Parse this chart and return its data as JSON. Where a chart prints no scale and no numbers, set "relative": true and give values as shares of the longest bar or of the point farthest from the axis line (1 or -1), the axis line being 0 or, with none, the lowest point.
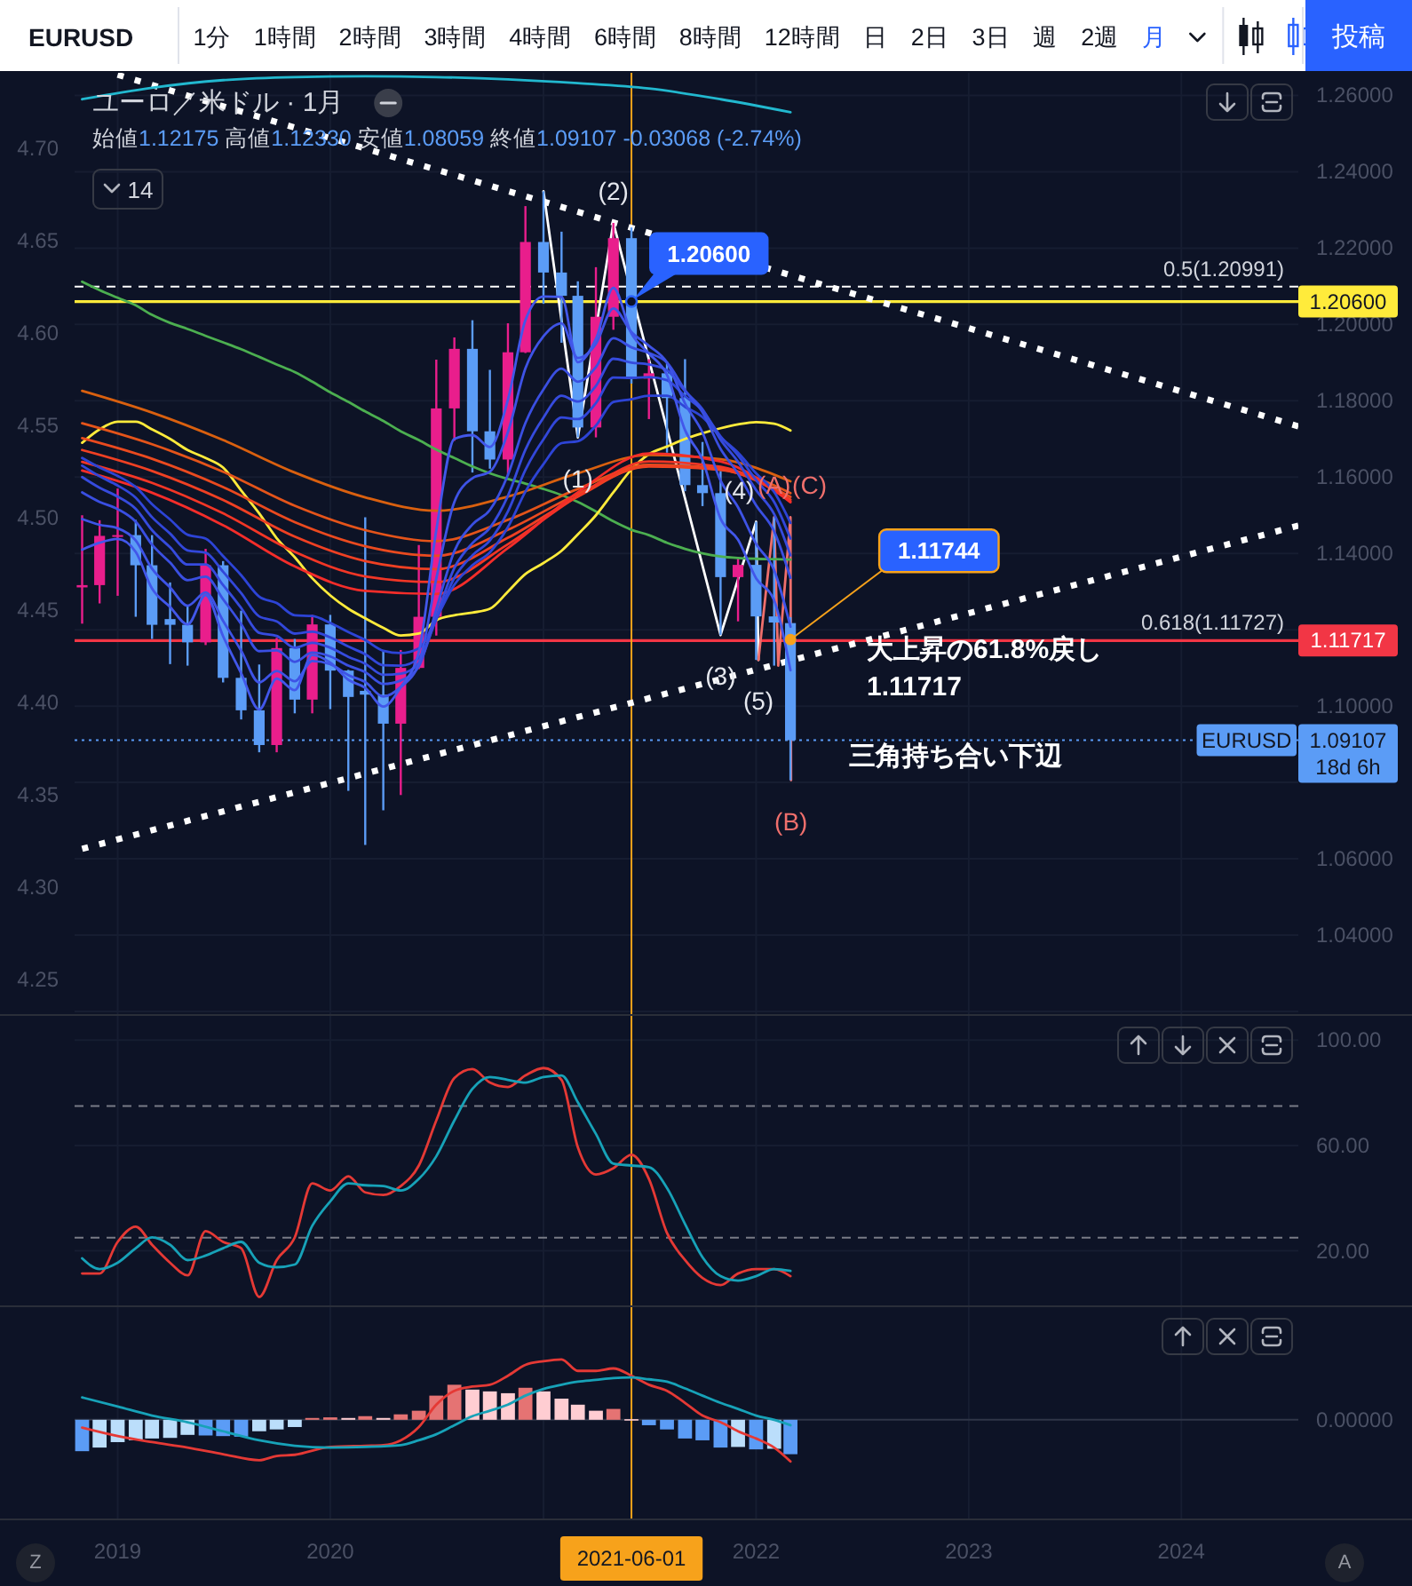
{
  "chart_data": [
    {
      "type": "candlestick",
      "title": "ユーロ／米ドル · 1月",
      "subtitle": "始値1.12175 高値1.12330 安値1.08059 終値1.09107 -0.03068 (-2.74%)",
      "x": [
        "2018-11",
        "2018-12",
        "2019-01",
        "2019-02",
        "2019-03",
        "2019-04",
        "2019-05",
        "2019-06",
        "2019-07",
        "2019-08",
        "2019-09",
        "2019-10",
        "2019-11",
        "2019-12",
        "2020-01",
        "2020-02",
        "2020-03",
        "2020-04",
        "2020-05",
        "2020-06",
        "2020-07",
        "2020-08",
        "2020-09",
        "2020-10",
        "2020-11",
        "2020-12",
        "2021-01",
        "2021-02",
        "2021-03",
        "2021-04",
        "2021-05",
        "2021-06",
        "2021-07",
        "2021-08",
        "2021-09",
        "2021-10",
        "2021-11",
        "2021-12",
        "2022-01",
        "2022-02",
        "2022-03"
      ],
      "xlim": [
        "2018-06-13",
        "2025-01-31"
      ],
      "xticks": [
        "2019",
        "2020",
        {
          "value": "2021",
          "label": null
        },
        "2022",
        "2023",
        "2024"
      ],
      "ylim": [
        1.0193,
        1.285
      ],
      "yticks": [
        {
          "value": 1.02,
          "label": null
        },
        {
          "value": 1.04,
          "label": "1.04000"
        },
        {
          "value": 1.06,
          "label": "1.06000"
        },
        {
          "value": 1.08,
          "label": null
        },
        {
          "value": 1.1,
          "label": "1.10000"
        },
        {
          "value": 1.12,
          "label": null
        },
        {
          "value": 1.14,
          "label": "1.14000"
        },
        {
          "value": 1.16,
          "label": "1.16000"
        },
        {
          "value": 1.18,
          "label": "1.18000"
        },
        {
          "value": 1.2,
          "label": "1.20000"
        },
        {
          "value": 1.22,
          "label": "1.22000"
        },
        {
          "value": 1.24,
          "label": "1.24000"
        },
        {
          "value": 1.26,
          "label": "1.26000"
        }
      ],
      "y2lim": [
        4.2315,
        4.78
      ],
      "y2ticks": [
        {
          "value": 4.25,
          "label": "4.25"
        },
        {
          "value": 4.3,
          "label": "4.30"
        },
        {
          "value": 4.35,
          "label": "4.35"
        },
        {
          "value": 4.4,
          "label": "4.40"
        },
        {
          "value": 4.45,
          "label": "4.45"
        },
        {
          "value": 4.5,
          "label": "4.50"
        },
        {
          "value": 4.55,
          "label": "4.55"
        },
        {
          "value": 4.6,
          "label": "4.60"
        },
        {
          "value": 4.65,
          "label": "4.65"
        },
        {
          "value": 4.7,
          "label": "4.70"
        }
      ],
      "tick_labels": "y",
      "grid": true,
      "series": [
        {
          "type": "candlestick",
          "name": "EURUSD",
          "ohlc": [
            [
              1.1311,
              1.15,
              1.1216,
              1.1317
            ],
            [
              1.1317,
              1.1487,
              1.1269,
              1.1446
            ],
            [
              1.1446,
              1.157,
              1.1289,
              1.1448
            ],
            [
              1.1448,
              1.1488,
              1.1234,
              1.1369
            ],
            [
              1.1369,
              1.1448,
              1.1176,
              1.1213
            ],
            [
              1.1228,
              1.1324,
              1.111,
              1.1213
            ],
            [
              1.1213,
              1.1265,
              1.1106,
              1.1167
            ],
            [
              1.1167,
              1.1412,
              1.116,
              1.1369
            ],
            [
              1.1369,
              1.138,
              1.1062,
              1.1074
            ],
            [
              1.1074,
              1.125,
              1.0965,
              1.0989
            ],
            [
              1.0989,
              1.1109,
              1.0879,
              1.0898
            ],
            [
              1.0898,
              1.1179,
              1.0879,
              1.1152
            ],
            [
              1.1152,
              1.1176,
              1.0981,
              1.1017
            ],
            [
              1.1017,
              1.1239,
              1.0981,
              1.1214
            ],
            [
              1.1214,
              1.1239,
              1.0992,
              1.1093
            ],
            [
              1.1093,
              1.1095,
              1.0778,
              1.1024
            ],
            [
              1.104,
              1.1495,
              1.0636,
              1.103
            ],
            [
              1.103,
              1.1147,
              1.0727,
              1.0954
            ],
            [
              1.0954,
              1.1147,
              1.0767,
              1.11
            ],
            [
              1.11,
              1.1422,
              1.1097,
              1.1234
            ],
            [
              1.1234,
              1.1908,
              1.1185,
              1.178
            ],
            [
              1.178,
              1.1966,
              1.1695,
              1.1936
            ],
            [
              1.1936,
              1.2011,
              1.1612,
              1.172
            ],
            [
              1.172,
              1.1881,
              1.1622,
              1.1646
            ],
            [
              1.1646,
              1.2003,
              1.1603,
              1.1927
            ],
            [
              1.1927,
              1.231,
              1.1925,
              1.2216
            ],
            [
              1.2216,
              1.2349,
              1.2054,
              1.2136
            ],
            [
              1.2136,
              1.2243,
              1.1952,
              1.2075
            ],
            [
              1.2075,
              1.2113,
              1.1704,
              1.173
            ],
            [
              1.173,
              1.215,
              1.1704,
              1.202
            ],
            [
              1.202,
              1.2266,
              1.1986,
              1.2226
            ],
            [
              1.2226,
              1.2254,
              1.1845,
              1.1858
            ],
            [
              1.1858,
              1.1909,
              1.1752,
              1.1872
            ],
            [
              1.1872,
              1.1902,
              1.1664,
              1.1807
            ],
            [
              1.1807,
              1.1909,
              1.1563,
              1.1579
            ],
            [
              1.1579,
              1.1692,
              1.1524,
              1.1558
            ],
            [
              1.1558,
              1.1616,
              1.1186,
              1.1338
            ],
            [
              1.1338,
              1.1386,
              1.1222,
              1.137
            ],
            [
              1.137,
              1.1483,
              1.1121,
              1.1235
            ],
            [
              1.1235,
              1.1495,
              1.1106,
              1.1219
            ],
            [
              1.12175,
              1.1233,
              1.08059,
              1.09107
            ]
          ],
          "colors": [
            "#e91e8c",
            "#e91e8c",
            "#e91e8c",
            "#5b9cf6",
            "#5b9cf6",
            "#5b9cf6",
            "#5b9cf6",
            "#e91e8c",
            "#5b9cf6",
            "#5b9cf6",
            "#5b9cf6",
            "#e91e8c",
            "#5b9cf6",
            "#e91e8c",
            "#5b9cf6",
            "#5b9cf6",
            "#5b9cf6",
            "#5b9cf6",
            "#e91e8c",
            "#e91e8c",
            "#e91e8c",
            "#e91e8c",
            "#5b9cf6",
            "#5b9cf6",
            "#e91e8c",
            "#e91e8c",
            "#5b9cf6",
            "#5b9cf6",
            "#5b9cf6",
            "#e91e8c",
            "#e91e8c",
            "#5b9cf6",
            "#e91e8c",
            "#5b9cf6",
            "#5b9cf6",
            "#5b9cf6",
            "#5b9cf6",
            "#e91e8c",
            "#5b9cf6",
            "#5b9cf6",
            "#5b9cf6"
          ]
        },
        {
          "type": "line",
          "color": "#22b8cf",
          "x": [
            "2018-11",
            "2019-03",
            "2019-07",
            "2019-11",
            "2020-03",
            "2020-07",
            "2020-11",
            "2021-03",
            "2021-07",
            "2021-11",
            "2022-03"
          ],
          "values": [
            1.259,
            1.262,
            1.264,
            1.2648,
            1.265,
            1.2648,
            1.2642,
            1.2632,
            1.2618,
            1.259,
            1.2556
          ]
        },
        {
          "type": "line",
          "color": "#4caf50",
          "values": [
            1.2112,
            1.209,
            1.207,
            1.205,
            1.2025,
            1.2004,
            1.1988,
            1.197,
            1.1953,
            1.1935,
            1.1915,
            1.1895,
            1.1875,
            1.185,
            1.1822,
            1.1797,
            1.1772,
            1.1747,
            1.172,
            1.1697,
            1.1672,
            1.165,
            1.1628,
            1.161,
            1.1595,
            1.1583,
            1.1569,
            1.1553,
            1.1535,
            1.151,
            1.1484,
            1.1462,
            1.1448,
            1.1428,
            1.1412,
            1.14,
            1.1392,
            1.1388,
            1.1386,
            1.1385,
            1.1384
          ]
        },
        {
          "type": "line",
          "color": "#ffeb3b",
          "values": [
            1.169,
            1.1725,
            1.1745,
            1.1745,
            1.1725,
            1.17,
            1.1671,
            1.165,
            1.1625,
            1.1565,
            1.1505,
            1.144,
            1.139,
            1.1335,
            1.129,
            1.1255,
            1.123,
            1.1205,
            1.1185,
            1.119,
            1.1225,
            1.1238,
            1.1245,
            1.1255,
            1.13,
            1.1346,
            1.1375,
            1.1407,
            1.145,
            1.15,
            1.156,
            1.162,
            1.166,
            1.168,
            1.17,
            1.1715,
            1.1728,
            1.1738,
            1.1744,
            1.174,
            1.1722
          ]
        },
        {
          "type": "line",
          "color": "#d9600f",
          "x": [
            "2018-11",
            "2019-03",
            "2019-07",
            "2019-11",
            "2020-03",
            "2020-07",
            "2020-11",
            "2021-03",
            "2021-07",
            "2021-11",
            "2022-03"
          ],
          "values": [
            1.1826,
            1.1769,
            1.1697,
            1.1612,
            1.1547,
            1.1512,
            1.1549,
            1.161,
            1.1658,
            1.1647,
            1.1589
          ]
        },
        {
          "type": "line",
          "color": "#e4541a",
          "x": [
            "2018-11",
            "2019-03",
            "2019-07",
            "2019-11",
            "2020-03",
            "2020-07",
            "2020-11",
            "2021-03",
            "2021-07",
            "2021-11",
            "2022-03"
          ],
          "values": [
            1.1741,
            1.1686,
            1.1614,
            1.1525,
            1.1461,
            1.1432,
            1.1488,
            1.1569,
            1.1632,
            1.1623,
            1.1558
          ]
        },
        {
          "type": "line",
          "color": "#ea4a1f",
          "x": [
            "2018-11",
            "2019-03",
            "2019-07",
            "2019-11",
            "2020-03",
            "2020-07",
            "2020-11",
            "2021-03",
            "2021-07",
            "2021-11",
            "2022-03"
          ],
          "values": [
            1.1702,
            1.1648,
            1.1574,
            1.1482,
            1.1419,
            1.1394,
            1.1462,
            1.1556,
            1.1628,
            1.1619,
            1.1548
          ]
        },
        {
          "type": "line",
          "color": "#ef4023",
          "x": [
            "2018-11",
            "2019-03",
            "2019-07",
            "2019-11",
            "2020-03",
            "2020-07",
            "2020-11",
            "2021-03",
            "2021-07",
            "2021-11",
            "2022-03"
          ],
          "values": [
            1.1671,
            1.1616,
            1.154,
            1.1444,
            1.138,
            1.1359,
            1.1441,
            1.1549,
            1.163,
            1.162,
            1.1541
          ]
        },
        {
          "type": "line",
          "color": "#f23626",
          "x": [
            "2018-11",
            "2019-03",
            "2019-07",
            "2019-11",
            "2020-03",
            "2020-07",
            "2020-11",
            "2021-03",
            "2021-07",
            "2021-11",
            "2022-03"
          ],
          "values": [
            1.164,
            1.1585,
            1.1505,
            1.1404,
            1.134,
            1.1325,
            1.1424,
            1.155,
            1.1641,
            1.1627,
            1.1537
          ]
        },
        {
          "type": "line",
          "color": "#f42d2a",
          "x": [
            "2018-11",
            "2019-03",
            "2019-07",
            "2019-11",
            "2020-03",
            "2020-07",
            "2020-11",
            "2021-03",
            "2021-07",
            "2021-11",
            "2022-03"
          ],
          "values": [
            1.1617,
            1.1559,
            1.1474,
            1.1366,
            1.1302,
            1.1294,
            1.1414,
            1.156,
            1.1662,
            1.1641,
            1.1534
          ]
        },
        {
          "type": "line",
          "color": "#2d44d6",
          "values": [
            1.165,
            1.1625,
            1.1603,
            1.1574,
            1.1529,
            1.1489,
            1.1449,
            1.1439,
            1.1393,
            1.1343,
            1.1287,
            1.127,
            1.1238,
            1.1236,
            1.1218,
            1.1194,
            1.1173,
            1.1145,
            1.1139,
            1.1151,
            1.123,
            1.1318,
            1.1369,
            1.1403,
            1.1469,
            1.1562,
            1.1634,
            1.1689,
            1.1694,
            1.1735,
            1.1797,
            1.1804,
            1.1813,
            1.1813,
            1.1784,
            1.1757,
            1.1705,
            1.1664,
            1.161,
            1.1561,
            1.148
          ]
        },
        {
          "type": "line",
          "color": "#3247da",
          "values": [
            1.163,
            1.1602,
            1.1578,
            1.1546,
            1.1495,
            1.1452,
            1.1408,
            1.1402,
            1.1352,
            1.1296,
            1.1235,
            1.1222,
            1.119,
            1.1195,
            1.118,
            1.1156,
            1.1136,
            1.1107,
            1.1106,
            1.1126,
            1.1227,
            1.1336,
            1.1395,
            1.1434,
            1.151,
            1.1619,
            1.1699,
            1.1756,
            1.1752,
            1.1794,
            1.1861,
            1.186,
            1.1862,
            1.1854,
            1.1812,
            1.1774,
            1.1707,
            1.1657,
            1.1592,
            1.1535,
            1.1439
          ]
        },
        {
          "type": "line",
          "color": "#364bde",
          "values": [
            1.16,
            1.1572,
            1.1549,
            1.1517,
            1.1461,
            1.1416,
            1.1371,
            1.1371,
            1.1317,
            1.1257,
            1.1192,
            1.1184,
            1.1153,
            1.1166,
            1.1153,
            1.1129,
            1.1111,
            1.1082,
            1.1085,
            1.1112,
            1.1234,
            1.1362,
            1.1427,
            1.1467,
            1.1551,
            1.1672,
            1.1756,
            1.1813,
            1.1798,
            1.1839,
            1.191,
            1.19,
            1.1895,
            1.188,
            1.1825,
            1.1778,
            1.1698,
            1.164,
            1.1566,
            1.1503,
            1.1395
          ]
        },
        {
          "type": "line",
          "color": "#3a4fe2",
          "values": [
            1.156,
            1.1535,
            1.1516,
            1.1483,
            1.1423,
            1.1376,
            1.133,
            1.1339,
            1.128,
            1.1215,
            1.1144,
            1.1146,
            1.1116,
            1.114,
            1.113,
            1.1106,
            1.1089,
            1.1058,
            1.1067,
            1.1104,
            1.1254,
            1.1406,
            1.1476,
            1.1514,
            1.1606,
            1.1742,
            1.183,
            1.1884,
            1.185,
            1.1888,
            1.1964,
            1.194,
            1.1925,
            1.19,
            1.1828,
            1.177,
            1.1674,
            1.1609,
            1.1526,
            1.1458,
            1.1336
          ]
        },
        {
          "type": "line",
          "color": "#3e53e6",
          "values": [
            1.149,
            1.1475,
            1.1466,
            1.1434,
            1.136,
            1.1311,
            1.1263,
            1.1298,
            1.1223,
            1.1145,
            1.1062,
            1.1092,
            1.1065,
            1.1118,
            1.111,
            1.1081,
            1.1063,
            1.1025,
            1.105,
            1.1111,
            1.1334,
            1.1535,
            1.1597,
            1.1614,
            1.1718,
            1.1885,
            1.1969,
            1.2003,
            1.1912,
            1.1949,
            1.2042,
            1.198,
            1.1944,
            1.19,
            1.1793,
            1.1717,
            1.1591,
            1.1521,
            1.1425,
            1.1356,
            1.1208
          ]
        },
        {
          "type": "line",
          "color": "#4257ea",
          "values": [
            1.141,
            1.1428,
            1.1438,
            1.1404,
            1.1308,
            1.126,
            1.1214,
            1.1291,
            1.1183,
            1.1086,
            1.0991,
            1.1072,
            1.1042,
            1.1134,
            1.1114,
            1.1069,
            1.1048,
            1.0999,
            1.105,
            1.1142,
            1.1461,
            1.17,
            1.171,
            1.1679,
            1.1803,
            1.2011,
            1.2073,
            1.2072,
            1.1901,
            1.1962,
            1.2096,
            1.1976,
            1.1924,
            1.1868,
            1.1723,
            1.1645,
            1.1491,
            1.1436,
            1.1335,
            1.1277,
            1.1094
          ]
        },
        {
          "type": "line",
          "color": "#ffffff",
          "line_style": "dotted",
          "x": [
            "2019-01",
            "2024-07-20"
          ],
          "values": [
            1.2654,
            1.1733
          ]
        },
        {
          "type": "line",
          "color": "#ffffff",
          "line_style": "dotted",
          "x": [
            "2018-11",
            "2024-07-20"
          ],
          "values": [
            1.0626,
            1.1473
          ]
        },
        {
          "type": "line",
          "color": "#ffffff",
          "x": [
            "2021-01",
            "2021-03",
            "2021-05",
            "2021-11",
            "2022-01",
            "2022-01-05"
          ],
          "values": [
            1.2349,
            1.1704,
            1.2266,
            1.1186,
            1.1483,
            1.1121
          ]
        },
        {
          "type": "line",
          "color": "#ef6f6c",
          "x": [
            "2022-01-05",
            "2022-02",
            "2022-02-08",
            "2022-03",
            "2022-03-02"
          ],
          "values": [
            1.1121,
            1.1495,
            1.1106,
            1.1495,
            1.0806
          ]
        }
      ],
      "ref_lines": [
        {
          "axis": "y",
          "value": 1.20991,
          "color": "#ffffff",
          "line_style": "dashed"
        },
        {
          "axis": "y",
          "value": 1.206,
          "label": "1.20600",
          "color": "#ffeb3b"
        },
        {
          "axis": "y",
          "value": 1.11717,
          "label": "1.11717",
          "color": "#f23645"
        },
        {
          "axis": "y",
          "value": 1.09107,
          "label": "1.09107\n18d 6h",
          "color": "#5b9cf6",
          "line_style": "dotted"
        },
        {
          "axis": "x",
          "value": "2021-06-01",
          "color": "#f7a21b"
        }
      ],
      "annotations": [
        "EURUSD",
        "1分",
        "1時間",
        "2時間",
        "3時間",
        "4時間",
        "6時間",
        "8時間",
        "12時間",
        "日",
        "2日",
        "3日",
        "週",
        "2週",
        "月",
        "投稿",
        "14",
        "三角持ち合い下辺",
        {
          "text": "(1)",
          "x": "2021-03",
          "y": 1.1704
        },
        {
          "text": "(2)",
          "x": "2021-05",
          "y": 1.2266
        },
        {
          "text": "(3)",
          "x": "2021-11",
          "y": 1.1186
        },
        {
          "text": "(4)",
          "x": "2022-01",
          "y": 1.1483
        },
        {
          "text": "(5)",
          "x": "2022-01-05",
          "y": 1.1121
        },
        {
          "text": "(A)",
          "x": "2022-02",
          "y": 1.1495
        },
        {
          "text": "(B)",
          "x": "2022-03-02",
          "y": 1.0806
        },
        {
          "text": "(C)",
          "x": "2022-03",
          "y": 1.1495
        },
        {
          "text": "1.20600",
          "x": "2021-06",
          "y": 1.206
        },
        {
          "text": "1.11744",
          "x": "2022-03",
          "y": 1.11744
        },
        {
          "text": "大上昇の61.8%戻し\n1.11717",
          "x": "2022-07-10",
          "y": 1.1147
        },
        {
          "text": "0.5(1.20991)",
          "y": 1.20991
        },
        {
          "text": "0.618(1.11727)",
          "y": 1.11727
        }
      ]
    },
    {
      "type": "line",
      "x": [
        "2018-11",
        "2018-12",
        "2019-01",
        "2019-02",
        "2019-03",
        "2019-04",
        "2019-05",
        "2019-06",
        "2019-07",
        "2019-08",
        "2019-09",
        "2019-10",
        "2019-11",
        "2019-12",
        "2020-01",
        "2020-02",
        "2020-03",
        "2020-04",
        "2020-05",
        "2020-06",
        "2020-07",
        "2020-08",
        "2020-09",
        "2020-10",
        "2020-11",
        "2020-12",
        "2021-01",
        "2021-02",
        "2021-03",
        "2021-04",
        "2021-05",
        "2021-06",
        "2021-07",
        "2021-08",
        "2021-09",
        "2021-10",
        "2021-11",
        "2021-12",
        "2022-01",
        "2022-02",
        "2022-03"
      ],
      "xlim": [
        "2018-06-13",
        "2025-01-31"
      ],
      "xticks": [
        "2019",
        "2020",
        {
          "value": "2021",
          "label": null
        },
        "2022",
        "2023",
        "2024"
      ],
      "ylim": [
        -0.7,
        109.2
      ],
      "yticks": [
        {
          "value": 20,
          "label": "20.00"
        },
        {
          "value": 60,
          "label": "60.00"
        },
        {
          "value": 100,
          "label": "100.00"
        }
      ],
      "tick_labels": "y",
      "grid": true,
      "series": [
        {
          "color": "#e53935",
          "values": [
            11.4,
            11.4,
            23.4,
            29.2,
            22.3,
            15.5,
            10.7,
            27.5,
            23.4,
            21.0,
            2.5,
            16.5,
            25.1,
            45.6,
            42.9,
            48.3,
            42.2,
            41.2,
            44.6,
            52.4,
            69.5,
            85.6,
            89.0,
            83.9,
            82.2,
            86.6,
            89.4,
            84.9,
            59.3,
            49.0,
            51.4,
            56.5,
            47.3,
            26.8,
            16.5,
            9.7,
            7.0,
            11.4,
            13.1,
            13.1,
            10.4
          ]
        },
        {
          "color": "#17a2b8",
          "values": [
            17.2,
            13.1,
            15.5,
            21.0,
            25.1,
            22.3,
            16.5,
            18.2,
            21.0,
            23.4,
            15.5,
            13.8,
            14.8,
            29.5,
            38.8,
            45.6,
            44.9,
            44.6,
            42.9,
            47.3,
            55.9,
            69.5,
            81.5,
            86.0,
            84.9,
            83.9,
            86.0,
            86.6,
            76.4,
            64.4,
            53.1,
            52.4,
            51.8,
            43.9,
            30.2,
            17.6,
            10.4,
            8.7,
            10.4,
            13.1,
            12.4
          ]
        }
      ],
      "ref_lines": [
        {
          "axis": "y",
          "value": 75,
          "color": "#787b86",
          "line_style": "dashed"
        },
        {
          "axis": "y",
          "value": 25,
          "color": "#787b86",
          "line_style": "dashed"
        },
        {
          "axis": "x",
          "value": "2021-06-01",
          "color": "#f7a21b"
        }
      ]
    },
    {
      "type": "bar",
      "relative": true,
      "x": [
        "2018-11",
        "2018-12",
        "2019-01",
        "2019-02",
        "2019-03",
        "2019-04",
        "2019-05",
        "2019-06",
        "2019-07",
        "2019-08",
        "2019-09",
        "2019-10",
        "2019-11",
        "2019-12",
        "2020-01",
        "2020-02",
        "2020-03",
        "2020-04",
        "2020-05",
        "2020-06",
        "2020-07",
        "2020-08",
        "2020-09",
        "2020-10",
        "2020-11",
        "2020-12",
        "2021-01",
        "2021-02",
        "2021-03",
        "2021-04",
        "2021-05",
        "2021-06",
        "2021-07",
        "2021-08",
        "2021-09",
        "2021-10",
        "2021-11",
        "2021-12",
        "2022-01",
        "2022-02",
        "2022-03"
      ],
      "xlim": [
        "2018-06-13",
        "2025-01-31"
      ],
      "xticks": [
        "2019",
        "2020",
        {
          "value": "2021",
          "label": null
        },
        "2022",
        "2023",
        "2024"
      ],
      "tick_labels": "x",
      "grid": "x",
      "series": [
        {
          "type": "bar",
          "values": [
            -0.52,
            -0.46,
            -0.37,
            -0.34,
            -0.31,
            -0.3,
            -0.25,
            -0.26,
            -0.27,
            -0.28,
            -0.19,
            -0.16,
            -0.12,
            0.03,
            0.04,
            0.03,
            0.06,
            0.03,
            0.09,
            0.15,
            0.4,
            0.58,
            0.5,
            0.47,
            0.44,
            0.53,
            0.47,
            0.35,
            0.25,
            0.15,
            0.18,
            0.01,
            -0.09,
            -0.16,
            -0.31,
            -0.34,
            -0.46,
            -0.45,
            -0.49,
            -0.48,
            -0.57
          ],
          "colors": [
            "#5b9cf6",
            "#bbdefb",
            "#bbdefb",
            "#bbdefb",
            "#bbdefb",
            "#bbdefb",
            "#bbdefb",
            "#5b9cf6",
            "#5b9cf6",
            "#5b9cf6",
            "#bbdefb",
            "#bbdefb",
            "#bbdefb",
            "#e57373",
            "#e57373",
            "#ffcdd2",
            "#e57373",
            "#ffcdd2",
            "#e57373",
            "#e57373",
            "#e57373",
            "#e57373",
            "#ffcdd2",
            "#ffcdd2",
            "#ffcdd2",
            "#e57373",
            "#ffcdd2",
            "#ffcdd2",
            "#ffcdd2",
            "#ffcdd2",
            "#e57373",
            "#ffcdd2",
            "#5b9cf6",
            "#5b9cf6",
            "#5b9cf6",
            "#5b9cf6",
            "#5b9cf6",
            "#bbdefb",
            "#5b9cf6",
            "#bbdefb",
            "#5b9cf6"
          ]
        },
        {
          "type": "line",
          "color": "#e53935",
          "x": [
            "2018-11",
            "2019-01",
            "2019-03",
            "2019-05",
            "2019-07",
            "2019-09",
            "2019-10",
            "2019-11",
            "2020-01",
            "2020-03",
            "2020-04",
            "2020-05",
            "2020-06",
            "2020-07",
            "2020-08",
            "2020-09",
            "2020-10",
            "2020-11",
            "2020-12",
            "2021-01",
            "2021-02",
            "2021-03",
            "2021-04",
            "2021-05",
            "2021-06",
            "2021-07",
            "2021-08",
            "2021-09",
            "2021-10",
            "2021-11",
            "2021-12",
            "2022-01",
            "2022-02",
            "2022-03"
          ],
          "values": [
            -0.13,
            -0.27,
            -0.37,
            -0.46,
            -0.57,
            -0.67,
            -0.6,
            -0.58,
            -0.45,
            -0.43,
            -0.42,
            -0.34,
            -0.12,
            0.25,
            0.48,
            0.55,
            0.58,
            0.73,
            0.91,
            0.97,
            1.0,
            0.81,
            0.81,
            0.85,
            0.73,
            0.58,
            0.48,
            0.28,
            0.07,
            -0.04,
            -0.19,
            -0.31,
            -0.46,
            -0.69
          ]
        },
        {
          "type": "line",
          "color": "#17a2b8",
          "x": [
            "2018-11",
            "2019-01",
            "2019-03",
            "2019-05",
            "2019-07",
            "2019-09",
            "2019-11",
            "2020-01",
            "2020-03",
            "2020-05",
            "2020-06",
            "2020-07",
            "2020-08",
            "2020-09",
            "2020-10",
            "2020-11",
            "2020-12",
            "2021-01",
            "2021-02",
            "2021-03",
            "2021-04",
            "2021-05",
            "2021-06",
            "2021-07",
            "2021-08",
            "2021-09",
            "2021-10",
            "2021-11",
            "2021-12",
            "2022-01",
            "2022-02",
            "2022-03"
          ],
          "values": [
            0.37,
            0.22,
            0.07,
            -0.04,
            -0.19,
            -0.34,
            -0.43,
            -0.46,
            -0.45,
            -0.42,
            -0.34,
            -0.24,
            -0.09,
            0.06,
            0.15,
            0.25,
            0.4,
            0.51,
            0.58,
            0.63,
            0.66,
            0.69,
            0.7,
            0.67,
            0.63,
            0.52,
            0.4,
            0.28,
            0.18,
            0.07,
            0.0,
            -0.09
          ]
        }
      ],
      "ref_lines": [
        {
          "axis": "x",
          "value": "2021-06-01",
          "label": "2021-06-01",
          "color": "#f7a21b"
        }
      ],
      "annotations": [
        "0.00000",
        "Z",
        "A"
      ]
    }
  ]
}
